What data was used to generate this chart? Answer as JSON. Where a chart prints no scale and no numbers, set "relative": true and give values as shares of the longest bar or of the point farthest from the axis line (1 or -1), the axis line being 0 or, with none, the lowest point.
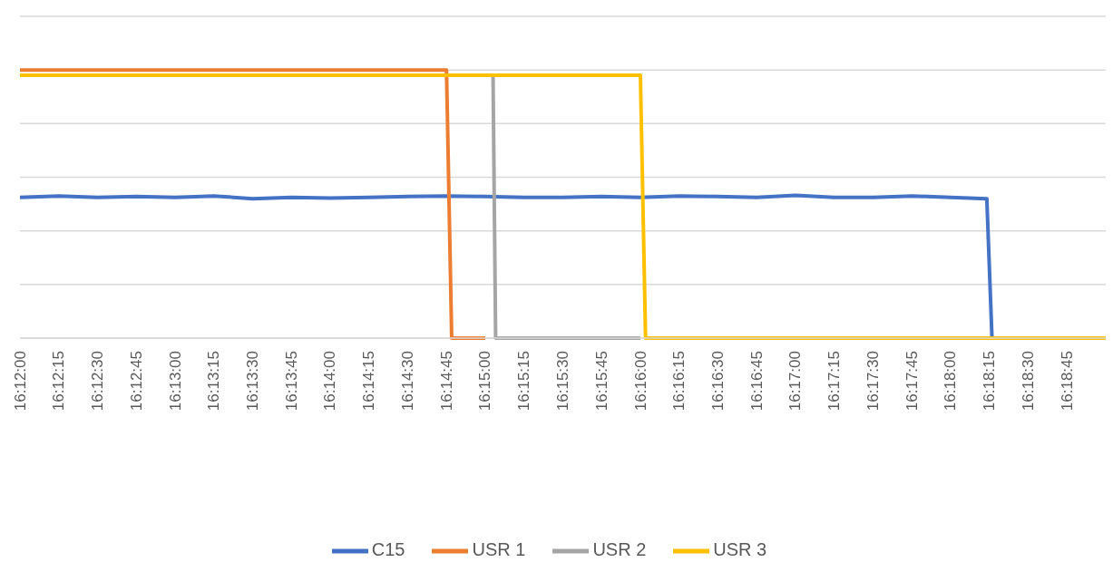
{
  "chart_data": {
    "type": "line",
    "relative": true,
    "grid": "y",
    "legend": "bottom",
    "marker": "none",
    "line_style": "solid",
    "xlim": [
      16.2,
      16.316667
    ],
    "xticks": [
      {
        "value": 16.2,
        "label": "16:12:00"
      },
      {
        "value": 16.204167,
        "label": "16:12:15"
      },
      {
        "value": 16.208333,
        "label": "16:12:30"
      },
      {
        "value": 16.2125,
        "label": "16:12:45"
      },
      {
        "value": 16.216667,
        "label": "16:13:00"
      },
      {
        "value": 16.220833,
        "label": "16:13:15"
      },
      {
        "value": 16.225,
        "label": "16:13:30"
      },
      {
        "value": 16.229167,
        "label": "16:13:45"
      },
      {
        "value": 16.233333,
        "label": "16:14:00"
      },
      {
        "value": 16.2375,
        "label": "16:14:15"
      },
      {
        "value": 16.241667,
        "label": "16:14:30"
      },
      {
        "value": 16.245833,
        "label": "16:14:45"
      },
      {
        "value": 16.25,
        "label": "16:15:00"
      },
      {
        "value": 16.254167,
        "label": "16:15:15"
      },
      {
        "value": 16.258333,
        "label": "16:15:30"
      },
      {
        "value": 16.2625,
        "label": "16:15:45"
      },
      {
        "value": 16.266667,
        "label": "16:16:00"
      },
      {
        "value": 16.270833,
        "label": "16:16:15"
      },
      {
        "value": 16.275,
        "label": "16:16:30"
      },
      {
        "value": 16.279167,
        "label": "16:16:45"
      },
      {
        "value": 16.283333,
        "label": "16:17:00"
      },
      {
        "value": 16.2875,
        "label": "16:17:15"
      },
      {
        "value": 16.291667,
        "label": "16:17:30"
      },
      {
        "value": 16.295833,
        "label": "16:17:45"
      },
      {
        "value": 16.3,
        "label": "16:18:00"
      },
      {
        "value": 16.304167,
        "label": "16:18:15"
      },
      {
        "value": 16.308333,
        "label": "16:18:30"
      },
      {
        "value": 16.3125,
        "label": "16:18:45"
      }
    ],
    "series": [
      {
        "name": "C15",
        "color": "#4472c4",
        "x": [
          16.2,
          16.204167,
          16.208333,
          16.2125,
          16.216667,
          16.220833,
          16.225,
          16.229167,
          16.233333,
          16.2375,
          16.241667,
          16.245833,
          16.25,
          16.254167,
          16.258333,
          16.2625,
          16.266667,
          16.270833,
          16.275,
          16.279167,
          16.283333,
          16.2875,
          16.291667,
          16.295833,
          16.3,
          16.303889,
          16.304444
        ],
        "values": [
          0.525,
          0.53,
          0.525,
          0.528,
          0.525,
          0.53,
          0.52,
          0.525,
          0.522,
          0.525,
          0.528,
          0.53,
          0.528,
          0.525,
          0.525,
          0.528,
          0.525,
          0.53,
          0.528,
          0.525,
          0.532,
          0.525,
          0.525,
          0.53,
          0.525,
          0.52,
          0
        ]
      },
      {
        "name": "USR 1",
        "color": "#ed7d31",
        "x": [
          16.2,
          16.245833,
          16.246389,
          16.25
        ],
        "values": [
          1,
          1,
          0,
          0
        ]
      },
      {
        "name": "USR 2",
        "color": "#a5a5a5",
        "x": [
          16.250833,
          16.251111,
          16.266667
        ],
        "values": [
          0.98,
          0,
          0
        ]
      },
      {
        "name": "USR 3",
        "color": "#ffc000",
        "x": [
          16.2,
          16.266667,
          16.267222,
          16.316667
        ],
        "values": [
          0.98,
          0.98,
          0,
          0
        ]
      }
    ]
  }
}
